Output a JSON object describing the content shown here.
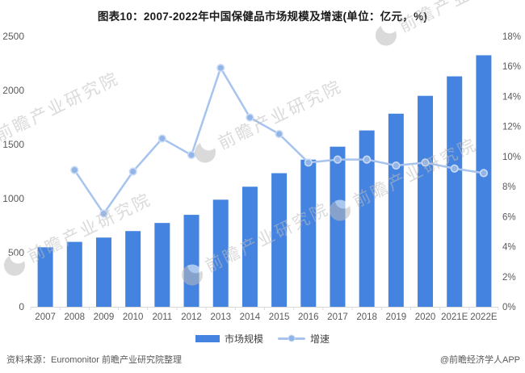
{
  "title": "图表10：2007-2022年中国保健品市场规模及增速(单位：亿元，%)",
  "chart_data": {
    "type": "bar+line",
    "categories": [
      "2007",
      "2008",
      "2009",
      "2010",
      "2011",
      "2012",
      "2013",
      "2014",
      "2015",
      "2016",
      "2017",
      "2018",
      "2019",
      "2020",
      "2021E",
      "2022E"
    ],
    "series": [
      {
        "name": "市场规模",
        "type": "bar",
        "axis": "left",
        "unit": "亿元",
        "values": [
          550,
          600,
          640,
          700,
          775,
          850,
          990,
          1110,
          1235,
          1360,
          1480,
          1630,
          1785,
          1950,
          2130,
          2325
        ]
      },
      {
        "name": "增速",
        "type": "line",
        "axis": "right",
        "unit": "%",
        "values": [
          null,
          9.1,
          6.2,
          9.0,
          11.2,
          10.1,
          15.9,
          12.6,
          11.5,
          9.6,
          9.8,
          9.8,
          9.4,
          9.6,
          9.2,
          8.9
        ]
      }
    ],
    "left_axis": {
      "min": 0,
      "max": 2500,
      "step": 500,
      "ticks": [
        "0",
        "500",
        "1000",
        "1500",
        "2000",
        "2500"
      ]
    },
    "right_axis": {
      "min": 0,
      "max": 18,
      "step": 2,
      "ticks": [
        "0%",
        "2%",
        "4%",
        "6%",
        "8%",
        "10%",
        "12%",
        "14%",
        "16%",
        "18%"
      ]
    },
    "grid": false,
    "legend_position": "bottom"
  },
  "legend": {
    "items": [
      {
        "label": "市场规模",
        "marker": "bar"
      },
      {
        "label": "增速",
        "marker": "line-dot"
      }
    ]
  },
  "watermark": {
    "text": "前瞻产业研究院"
  },
  "footer": {
    "source": "资料来源：Euromonitor 前瞻产业研究院整理",
    "credit": "@前瞻经济学人APP"
  },
  "colors": {
    "bar": "#4483DF",
    "line": "#A6C4EE",
    "marker_fill": "#93B4E7",
    "marker_stroke": "#C9DBF5",
    "axis_line": "#D9D9D9",
    "tick_text": "#595959",
    "title_text": "#1A1A1A",
    "footer_text": "#595959",
    "watermark": "#BDBDBD"
  }
}
